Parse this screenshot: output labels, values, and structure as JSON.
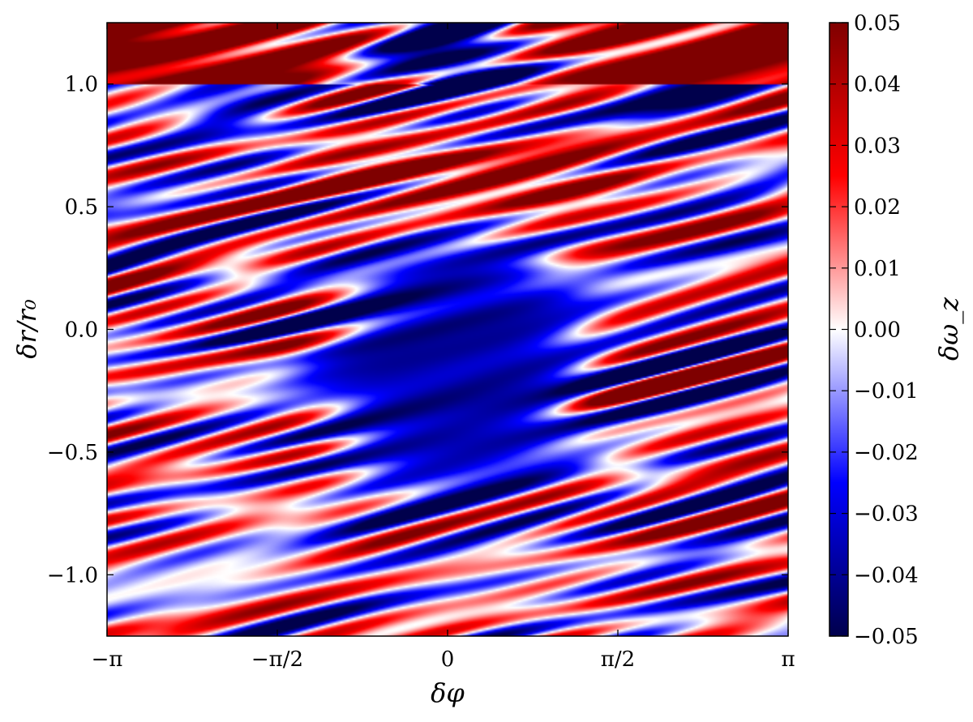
{
  "chart_data": {
    "type": "heatmap",
    "title": "",
    "xlabel": "δφ",
    "ylabel": "δr/r₀",
    "xlim": [
      -3.14159,
      3.14159
    ],
    "ylim": [
      -1.25,
      1.25
    ],
    "xticks": [
      {
        "value": -3.14159,
        "label": "−π"
      },
      {
        "value": -1.5708,
        "label": "−π/2"
      },
      {
        "value": 0,
        "label": "0"
      },
      {
        "value": 1.5708,
        "label": "π/2"
      },
      {
        "value": 3.14159,
        "label": "π"
      }
    ],
    "yticks": [
      {
        "value": -1.0,
        "label": "−1.0"
      },
      {
        "value": -0.5,
        "label": "−0.5"
      },
      {
        "value": 0.0,
        "label": "0.0"
      },
      {
        "value": 0.5,
        "label": "0.5"
      },
      {
        "value": 1.0,
        "label": "1.0"
      }
    ],
    "colorbar": {
      "label": "δω_z",
      "range": [
        -0.05,
        0.05
      ],
      "colormap": "seismic",
      "colors": {
        "low": "#00004c",
        "mid_low": "#0000ff",
        "zero": "#ffffff",
        "mid_high": "#ff0000",
        "high": "#7f0000"
      },
      "ticks": [
        {
          "value": 0.05,
          "label": "0.05"
        },
        {
          "value": 0.04,
          "label": "0.04"
        },
        {
          "value": 0.03,
          "label": "0.03"
        },
        {
          "value": 0.02,
          "label": "0.02"
        },
        {
          "value": 0.01,
          "label": "0.01"
        },
        {
          "value": 0.0,
          "label": "0.00"
        },
        {
          "value": -0.01,
          "label": "−0.01"
        },
        {
          "value": -0.02,
          "label": "−0.02"
        },
        {
          "value": -0.03,
          "label": "−0.03"
        },
        {
          "value": -0.04,
          "label": "−0.04"
        },
        {
          "value": -0.05,
          "label": "−0.05"
        }
      ]
    },
    "features": [
      {
        "name": "saturated positive band",
        "x_range": [
          -3.14159,
          3.14159
        ],
        "y_range": [
          1.0,
          1.25
        ],
        "value": 0.05
      },
      {
        "name": "negative vortex core",
        "center": [
          0.1,
          -0.15
        ],
        "half_width": [
          1.3,
          0.65
        ],
        "value": -0.04
      },
      {
        "name": "positive arc above core",
        "center": [
          0.1,
          0.65
        ],
        "value": 0.035
      },
      {
        "name": "negative band below edge",
        "y_range": [
          0.55,
          1.0
        ],
        "value": -0.035
      }
    ]
  }
}
